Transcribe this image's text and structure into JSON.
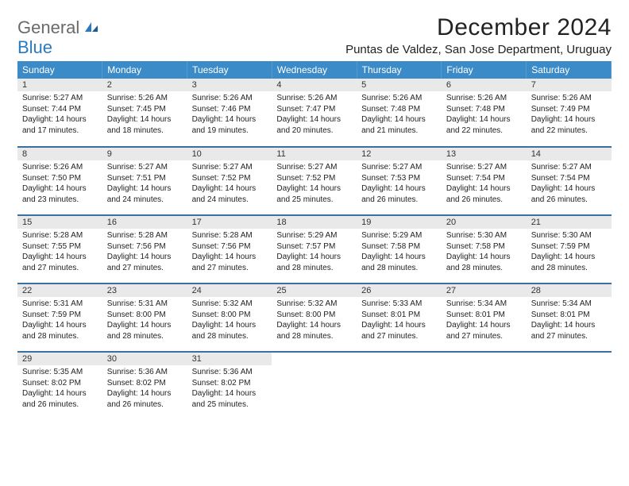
{
  "logo": {
    "text1": "General",
    "text2": "Blue"
  },
  "title": "December 2024",
  "location": "Puntas de Valdez, San Jose Department, Uruguay",
  "colors": {
    "header_bg": "#3b8bc8",
    "row_border": "#3b6fa0",
    "daynum_bg": "#e9e9e9",
    "logo_gray": "#6a6a6a",
    "logo_blue": "#2a7ac0"
  },
  "weekdays": [
    "Sunday",
    "Monday",
    "Tuesday",
    "Wednesday",
    "Thursday",
    "Friday",
    "Saturday"
  ],
  "weeks": [
    [
      {
        "n": "1",
        "sr": "5:27 AM",
        "ss": "7:44 PM",
        "dl": "14 hours and 17 minutes."
      },
      {
        "n": "2",
        "sr": "5:26 AM",
        "ss": "7:45 PM",
        "dl": "14 hours and 18 minutes."
      },
      {
        "n": "3",
        "sr": "5:26 AM",
        "ss": "7:46 PM",
        "dl": "14 hours and 19 minutes."
      },
      {
        "n": "4",
        "sr": "5:26 AM",
        "ss": "7:47 PM",
        "dl": "14 hours and 20 minutes."
      },
      {
        "n": "5",
        "sr": "5:26 AM",
        "ss": "7:48 PM",
        "dl": "14 hours and 21 minutes."
      },
      {
        "n": "6",
        "sr": "5:26 AM",
        "ss": "7:48 PM",
        "dl": "14 hours and 22 minutes."
      },
      {
        "n": "7",
        "sr": "5:26 AM",
        "ss": "7:49 PM",
        "dl": "14 hours and 22 minutes."
      }
    ],
    [
      {
        "n": "8",
        "sr": "5:26 AM",
        "ss": "7:50 PM",
        "dl": "14 hours and 23 minutes."
      },
      {
        "n": "9",
        "sr": "5:27 AM",
        "ss": "7:51 PM",
        "dl": "14 hours and 24 minutes."
      },
      {
        "n": "10",
        "sr": "5:27 AM",
        "ss": "7:52 PM",
        "dl": "14 hours and 24 minutes."
      },
      {
        "n": "11",
        "sr": "5:27 AM",
        "ss": "7:52 PM",
        "dl": "14 hours and 25 minutes."
      },
      {
        "n": "12",
        "sr": "5:27 AM",
        "ss": "7:53 PM",
        "dl": "14 hours and 26 minutes."
      },
      {
        "n": "13",
        "sr": "5:27 AM",
        "ss": "7:54 PM",
        "dl": "14 hours and 26 minutes."
      },
      {
        "n": "14",
        "sr": "5:27 AM",
        "ss": "7:54 PM",
        "dl": "14 hours and 26 minutes."
      }
    ],
    [
      {
        "n": "15",
        "sr": "5:28 AM",
        "ss": "7:55 PM",
        "dl": "14 hours and 27 minutes."
      },
      {
        "n": "16",
        "sr": "5:28 AM",
        "ss": "7:56 PM",
        "dl": "14 hours and 27 minutes."
      },
      {
        "n": "17",
        "sr": "5:28 AM",
        "ss": "7:56 PM",
        "dl": "14 hours and 27 minutes."
      },
      {
        "n": "18",
        "sr": "5:29 AM",
        "ss": "7:57 PM",
        "dl": "14 hours and 28 minutes."
      },
      {
        "n": "19",
        "sr": "5:29 AM",
        "ss": "7:58 PM",
        "dl": "14 hours and 28 minutes."
      },
      {
        "n": "20",
        "sr": "5:30 AM",
        "ss": "7:58 PM",
        "dl": "14 hours and 28 minutes."
      },
      {
        "n": "21",
        "sr": "5:30 AM",
        "ss": "7:59 PM",
        "dl": "14 hours and 28 minutes."
      }
    ],
    [
      {
        "n": "22",
        "sr": "5:31 AM",
        "ss": "7:59 PM",
        "dl": "14 hours and 28 minutes."
      },
      {
        "n": "23",
        "sr": "5:31 AM",
        "ss": "8:00 PM",
        "dl": "14 hours and 28 minutes."
      },
      {
        "n": "24",
        "sr": "5:32 AM",
        "ss": "8:00 PM",
        "dl": "14 hours and 28 minutes."
      },
      {
        "n": "25",
        "sr": "5:32 AM",
        "ss": "8:00 PM",
        "dl": "14 hours and 28 minutes."
      },
      {
        "n": "26",
        "sr": "5:33 AM",
        "ss": "8:01 PM",
        "dl": "14 hours and 27 minutes."
      },
      {
        "n": "27",
        "sr": "5:34 AM",
        "ss": "8:01 PM",
        "dl": "14 hours and 27 minutes."
      },
      {
        "n": "28",
        "sr": "5:34 AM",
        "ss": "8:01 PM",
        "dl": "14 hours and 27 minutes."
      }
    ],
    [
      {
        "n": "29",
        "sr": "5:35 AM",
        "ss": "8:02 PM",
        "dl": "14 hours and 26 minutes."
      },
      {
        "n": "30",
        "sr": "5:36 AM",
        "ss": "8:02 PM",
        "dl": "14 hours and 26 minutes."
      },
      {
        "n": "31",
        "sr": "5:36 AM",
        "ss": "8:02 PM",
        "dl": "14 hours and 25 minutes."
      },
      null,
      null,
      null,
      null
    ]
  ],
  "labels": {
    "sunrise": "Sunrise:",
    "sunset": "Sunset:",
    "daylight": "Daylight:"
  }
}
